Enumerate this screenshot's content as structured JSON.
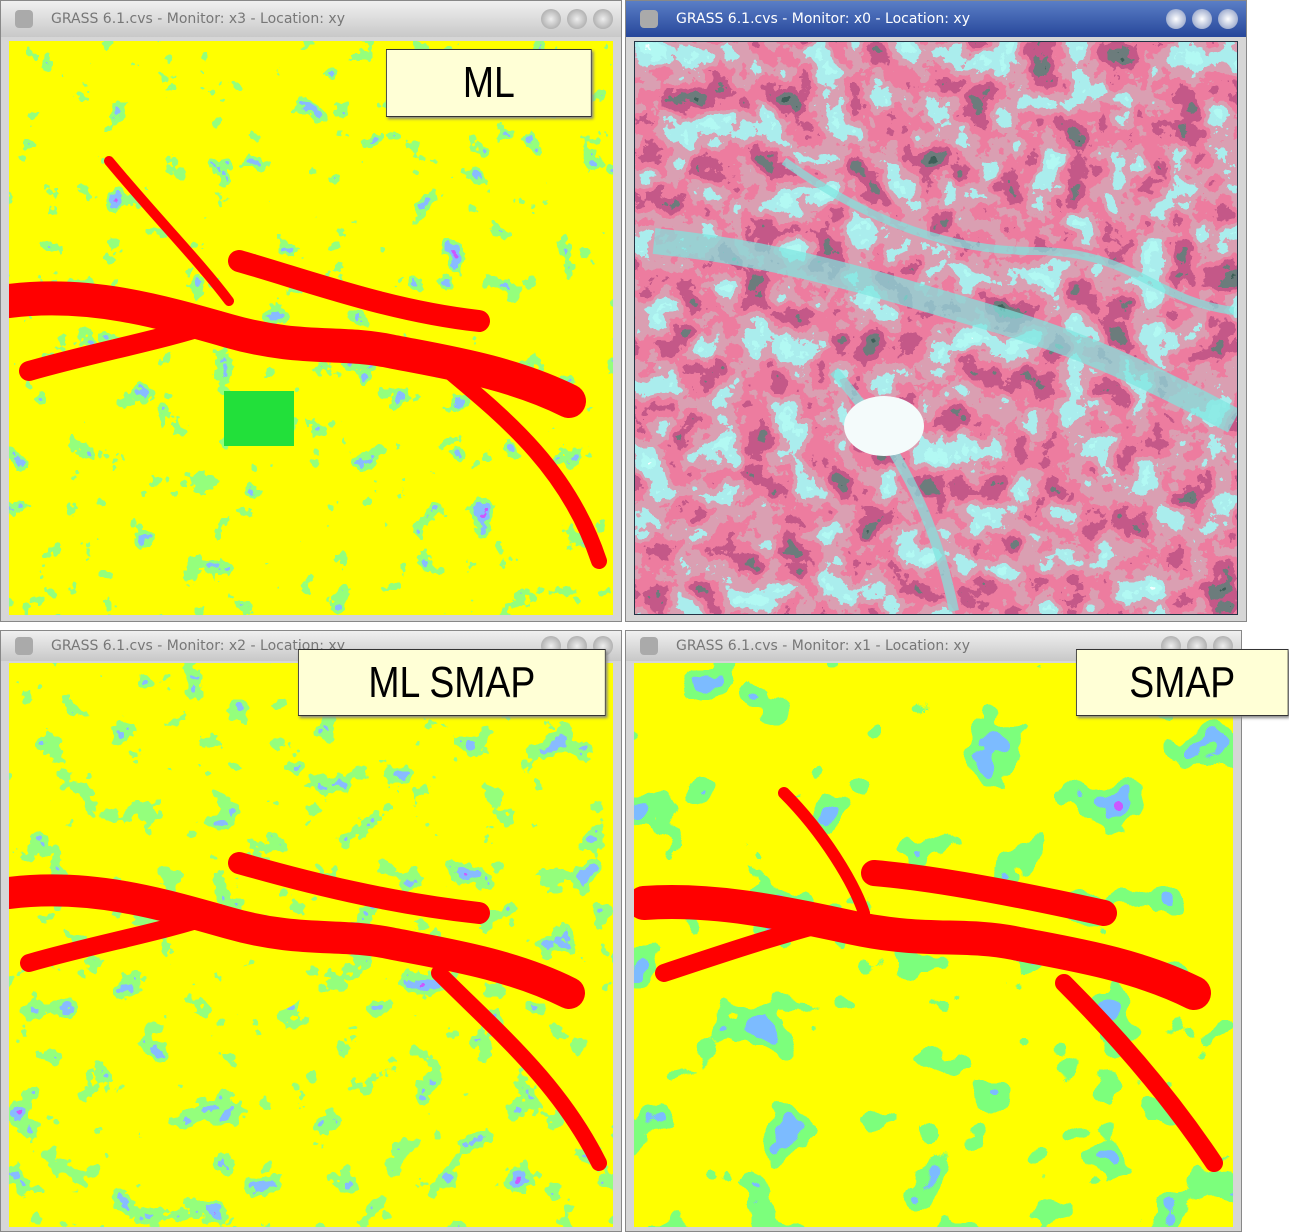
{
  "windows": [
    {
      "title": "GRASS 6.1.cvs - Monitor: x3 - Location: xy",
      "label": "ML"
    },
    {
      "title": "GRASS 6.1.cvs - Monitor: x0 - Location: xy"
    },
    {
      "title": "GRASS 6.1.cvs - Monitor: x2 - Location: xy",
      "label": "ML SMAP"
    },
    {
      "title": "GRASS 6.1.cvs - Monitor: x1 - Location: xy",
      "label": "SMAP"
    }
  ]
}
